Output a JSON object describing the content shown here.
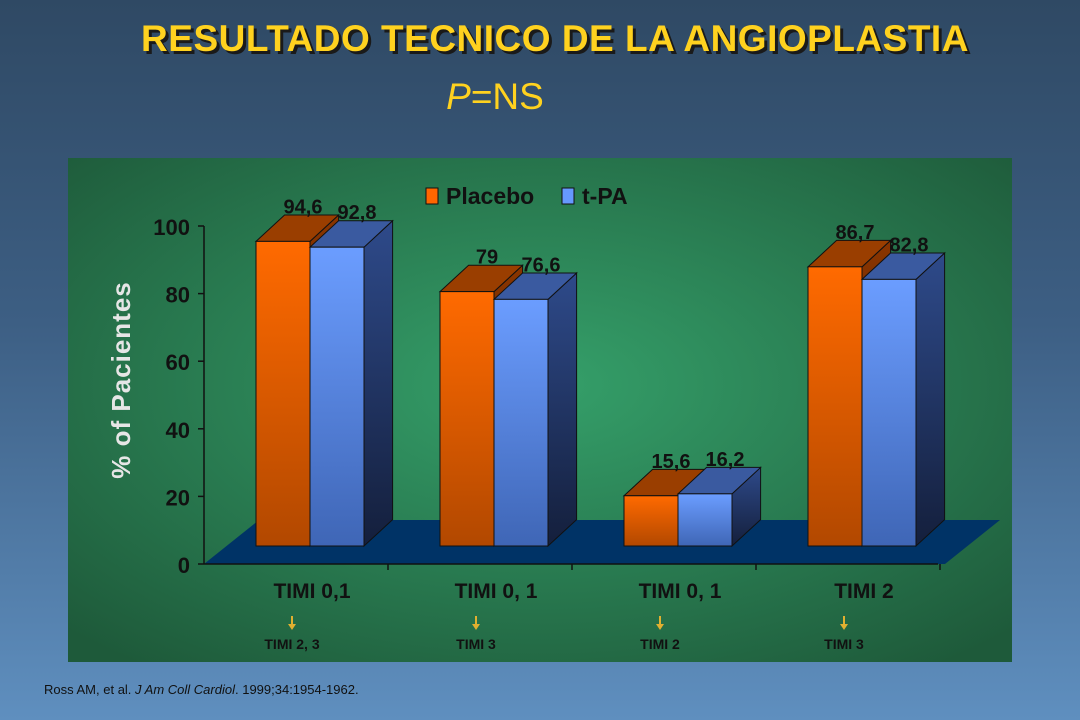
{
  "header": {
    "title": "RESULTADO TECNICO DE LA ANGIOPLASTIA",
    "subtitle_p": "P",
    "subtitle_rest": "=NS"
  },
  "chart_data": {
    "type": "bar",
    "categories": [
      "TIMI 0,1",
      "TIMI 0, 1",
      "TIMI 0, 1",
      "TIMI 2"
    ],
    "sublabels": [
      "TIMI 2, 3",
      "TIMI 3",
      "TIMI 2",
      "TIMI 3"
    ],
    "series": [
      {
        "name": "Placebo",
        "values": [
          94.6,
          79,
          15.6,
          86.7
        ],
        "labels": [
          "94,6",
          "79",
          "15,6",
          "86,7"
        ]
      },
      {
        "name": "t-PA",
        "values": [
          92.8,
          76.6,
          16.2,
          82.8
        ],
        "labels": [
          "92,8",
          "76,6",
          "16,2",
          "82,8"
        ]
      }
    ],
    "ylabel": "% of Pacientes",
    "ylim": [
      0,
      100
    ],
    "yticks": [
      0,
      20,
      40,
      60,
      80,
      100
    ],
    "legend": "top",
    "colors": {
      "placebo": "#ff6600",
      "tpa": "#6699ff",
      "plot_bg": "#2f9a61",
      "floor": "#003366",
      "sublabel_arrow": "#e0b030"
    }
  },
  "footer": {
    "citation_authors": "Ross AM, et al. ",
    "citation_journal": "J Am Coll Cardiol",
    "citation_rest": ". 1999;34:1954-1962."
  }
}
